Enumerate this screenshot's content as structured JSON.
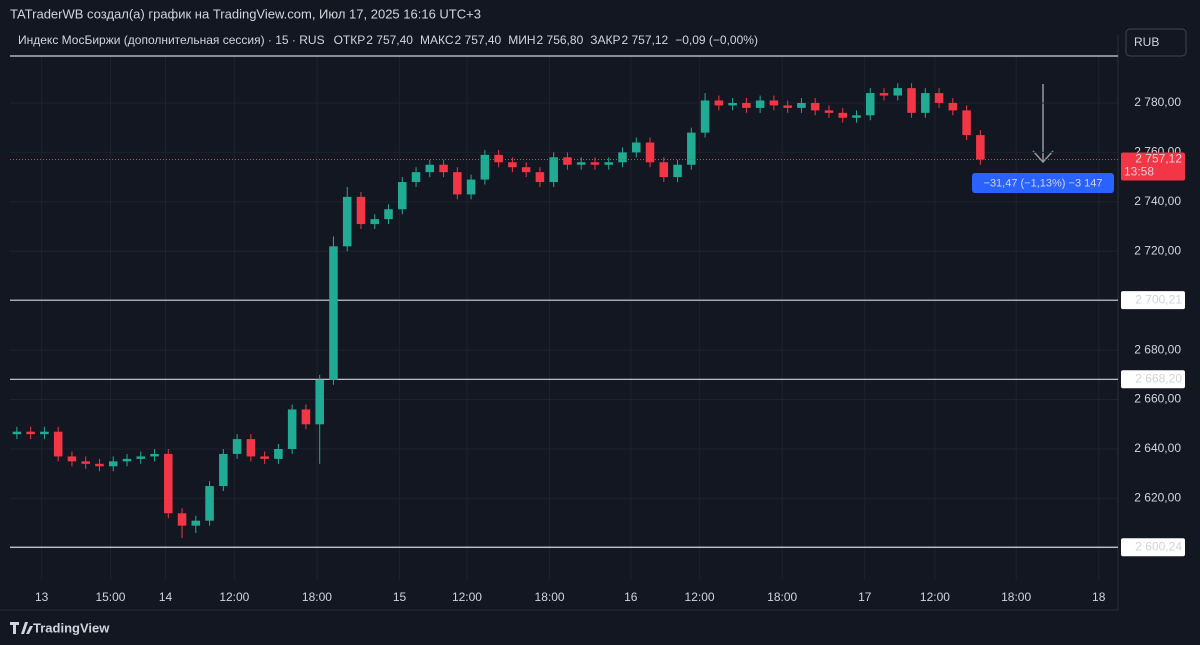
{
  "chart_data": {
    "type": "candlestick",
    "title": "TATraderWB создал(а) график на TradingView.com, Июл 17, 2025 16:16 UTC+3",
    "symbol": "Индекс МосБиржи (дополнительная сессия) · 15 · RUS",
    "legend_items": [
      {
        "name": "ОТКР",
        "value": "2 757,40"
      },
      {
        "name": "МАКС",
        "value": "2 757,40"
      },
      {
        "name": "МИН",
        "value": "2 756,80"
      },
      {
        "name": "ЗАКР",
        "value": "2 757,12"
      }
    ],
    "change": "−0,09 (−0,00%)",
    "currency": "RUB",
    "brand": "TradingView",
    "up_color": "#22ab94",
    "down_color": "#f23645",
    "grid": true,
    "xlim": [
      -0.5,
      80
    ],
    "ylim": [
      2587,
      2799.4
    ],
    "xticks": [
      {
        "value": 1.8,
        "label": "13"
      },
      {
        "value": 6.8,
        "label": "15:00"
      },
      {
        "value": 10.8,
        "label": "14"
      },
      {
        "value": 15.8,
        "label": "12:00"
      },
      {
        "value": 21.8,
        "label": "18:00"
      },
      {
        "value": 27.8,
        "label": "15"
      },
      {
        "value": 32.7,
        "label": "12:00"
      },
      {
        "value": 38.7,
        "label": "18:00"
      },
      {
        "value": 44.6,
        "label": "16"
      },
      {
        "value": 49.6,
        "label": "12:00"
      },
      {
        "value": 55.6,
        "label": "18:00"
      },
      {
        "value": 61.6,
        "label": "17"
      },
      {
        "value": 66.7,
        "label": "12:00"
      },
      {
        "value": 72.6,
        "label": "18:00"
      },
      {
        "value": 78.6,
        "label": "18"
      }
    ],
    "yticks": [
      {
        "value": 2600,
        "label": "2 600,00"
      },
      {
        "value": 2620,
        "label": "2 620,00"
      },
      {
        "value": 2640,
        "label": "2 640,00"
      },
      {
        "value": 2660,
        "label": "2 660,00"
      },
      {
        "value": 2680,
        "label": "2 680,00"
      },
      {
        "value": 2700,
        "label": "2 700,00"
      },
      {
        "value": 2720,
        "label": "2 720,00"
      },
      {
        "value": 2740,
        "label": "2 740,00"
      },
      {
        "value": 2760,
        "label": "2 760,00"
      },
      {
        "value": 2780,
        "label": "2 780,00"
      }
    ],
    "levels": [
      2799,
      {
        "value": 2700.21,
        "label": "2 700,21"
      },
      {
        "value": 2668.2,
        "label": "2 668,20"
      },
      {
        "value": 2600.24,
        "label": "2 600,24"
      }
    ],
    "last_price": {
      "value": 2757.12,
      "label": "2 757,12",
      "countdown": "13:58"
    },
    "measure": "−31,47 (−1,13%) −3 147",
    "x": [
      0,
      1,
      2,
      3,
      4,
      5,
      6,
      7,
      8,
      9,
      10,
      11,
      12,
      13,
      14,
      15,
      16,
      17,
      18,
      19,
      20,
      21,
      22,
      23,
      24,
      25,
      26,
      27,
      28,
      29,
      30,
      31,
      32,
      33,
      34,
      35,
      36,
      37,
      38,
      39,
      40,
      41,
      42,
      43,
      44,
      45,
      46,
      47,
      48,
      49,
      50,
      51,
      52,
      53,
      54,
      55,
      56,
      57,
      58,
      59,
      60,
      61,
      62,
      63,
      64,
      65,
      66,
      67,
      68,
      69,
      70
    ],
    "open": [
      2646,
      2647,
      2646,
      2647,
      2637,
      2635,
      2634,
      2633,
      2635,
      2636,
      2637,
      2638,
      2614,
      2609,
      2611,
      2625,
      2638,
      2644,
      2637,
      2636,
      2640,
      2656,
      2650,
      2668,
      2722,
      2742,
      2731,
      2733,
      2737,
      2748,
      2752,
      2755,
      2752,
      2743,
      2749,
      2759,
      2756,
      2754,
      2752,
      2748,
      2758,
      2755,
      2756,
      2755,
      2756,
      2760,
      2764,
      2756,
      2750,
      2755,
      2768,
      2781,
      2779,
      2780,
      2778,
      2781,
      2779,
      2778,
      2780,
      2777,
      2776,
      2774,
      2775,
      2784,
      2783,
      2786,
      2776,
      2784,
      2780,
      2777,
      2767
    ],
    "high": [
      2649,
      2649,
      2649,
      2649,
      2639,
      2637,
      2636,
      2637,
      2638,
      2639,
      2640,
      2640,
      2616,
      2613,
      2627,
      2640,
      2646,
      2646,
      2639,
      2642,
      2658,
      2658,
      2670,
      2726,
      2746,
      2744,
      2735,
      2739,
      2750,
      2754,
      2757,
      2757,
      2754,
      2751,
      2761,
      2761,
      2758,
      2756,
      2754,
      2760,
      2760,
      2758,
      2758,
      2758,
      2762,
      2766,
      2766,
      2758,
      2757,
      2770,
      2784,
      2783,
      2782,
      2782,
      2783,
      2783,
      2781,
      2782,
      2782,
      2779,
      2778,
      2777,
      2786,
      2786,
      2788,
      2788,
      2786,
      2786,
      2782,
      2779,
      2769
    ],
    "low": [
      2644,
      2644,
      2644,
      2635,
      2633,
      2632,
      2631,
      2631,
      2633,
      2634,
      2635,
      2612,
      2604,
      2606,
      2609,
      2623,
      2636,
      2635,
      2634,
      2634,
      2638,
      2648,
      2634,
      2666,
      2720,
      2729,
      2729,
      2731,
      2735,
      2746,
      2750,
      2750,
      2741,
      2741,
      2747,
      2754,
      2752,
      2750,
      2746,
      2746,
      2753,
      2753,
      2753,
      2753,
      2754,
      2758,
      2754,
      2748,
      2748,
      2753,
      2766,
      2777,
      2777,
      2776,
      2776,
      2777,
      2776,
      2776,
      2775,
      2774,
      2772,
      2772,
      2773,
      2781,
      2781,
      2774,
      2774,
      2778,
      2775,
      2765,
      2755
    ],
    "close": [
      2647,
      2646,
      2647,
      2637,
      2635,
      2634,
      2633,
      2635,
      2636,
      2637,
      2638,
      2614,
      2609,
      2611,
      2625,
      2638,
      2644,
      2637,
      2636,
      2640,
      2656,
      2650,
      2668,
      2722,
      2742,
      2731,
      2733,
      2737,
      2748,
      2752,
      2755,
      2752,
      2743,
      2749,
      2759,
      2756,
      2754,
      2752,
      2748,
      2758,
      2755,
      2756,
      2755,
      2756,
      2760,
      2764,
      2756,
      2750,
      2755,
      2768,
      2781,
      2779,
      2780,
      2778,
      2781,
      2779,
      2778,
      2780,
      2777,
      2776,
      2774,
      2775,
      2784,
      2783,
      2786,
      2776,
      2784,
      2780,
      2777,
      2767,
      2757.12
    ]
  }
}
